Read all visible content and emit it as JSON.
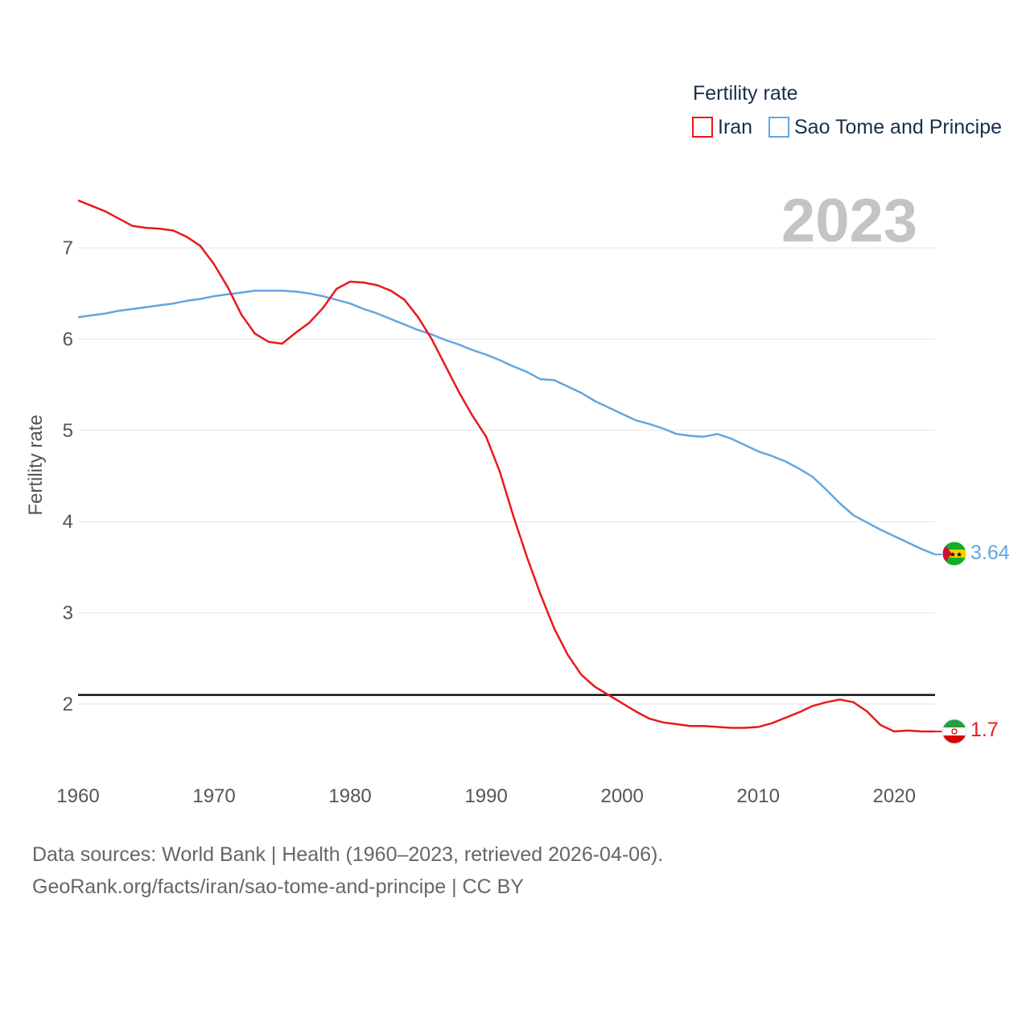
{
  "chart_data": {
    "type": "line",
    "title": "Fertility rate",
    "year_display": "2023",
    "ylabel": "Fertility rate",
    "xlabel": "",
    "xlim": [
      1960,
      2023
    ],
    "ylim": [
      1.3,
      7.55
    ],
    "x_ticks": [
      1960,
      1970,
      1980,
      1990,
      2000,
      2010,
      2020
    ],
    "y_ticks": [
      2,
      3,
      4,
      5,
      6,
      7
    ],
    "reference_line": 2.1,
    "x": [
      1960,
      1961,
      1962,
      1963,
      1964,
      1965,
      1966,
      1967,
      1968,
      1969,
      1970,
      1971,
      1972,
      1973,
      1974,
      1975,
      1976,
      1977,
      1978,
      1979,
      1980,
      1981,
      1982,
      1983,
      1984,
      1985,
      1986,
      1987,
      1988,
      1989,
      1990,
      1991,
      1992,
      1993,
      1994,
      1995,
      1996,
      1997,
      1998,
      1999,
      2000,
      2001,
      2002,
      2003,
      2004,
      2005,
      2006,
      2007,
      2008,
      2009,
      2010,
      2011,
      2012,
      2013,
      2014,
      2015,
      2016,
      2017,
      2018,
      2019,
      2020,
      2021,
      2022,
      2023
    ],
    "series": [
      {
        "name": "Iran",
        "color": "#e8191c",
        "end_label": "1.7",
        "values": [
          7.52,
          7.46,
          7.4,
          7.32,
          7.24,
          7.22,
          7.21,
          7.19,
          7.12,
          7.02,
          6.82,
          6.57,
          6.27,
          6.06,
          5.97,
          5.95,
          6.07,
          6.18,
          6.34,
          6.55,
          6.63,
          6.62,
          6.59,
          6.53,
          6.43,
          6.24,
          6.0,
          5.71,
          5.42,
          5.16,
          4.93,
          4.55,
          4.06,
          3.61,
          3.2,
          2.83,
          2.54,
          2.32,
          2.19,
          2.1,
          2.01,
          1.92,
          1.84,
          1.8,
          1.78,
          1.76,
          1.76,
          1.75,
          1.74,
          1.74,
          1.75,
          1.79,
          1.85,
          1.91,
          1.98,
          2.02,
          2.05,
          2.02,
          1.92,
          1.77,
          1.7,
          1.71,
          1.7,
          1.7
        ]
      },
      {
        "name": "Sao Tome and Principe",
        "color": "#62a6e3",
        "end_label": "3.64",
        "values": [
          6.24,
          6.26,
          6.28,
          6.31,
          6.33,
          6.35,
          6.37,
          6.39,
          6.42,
          6.44,
          6.47,
          6.49,
          6.51,
          6.53,
          6.53,
          6.53,
          6.52,
          6.5,
          6.47,
          6.43,
          6.39,
          6.33,
          6.28,
          6.22,
          6.16,
          6.1,
          6.05,
          5.99,
          5.94,
          5.88,
          5.83,
          5.77,
          5.7,
          5.64,
          5.56,
          5.55,
          5.48,
          5.41,
          5.32,
          5.25,
          5.18,
          5.11,
          5.07,
          5.02,
          4.96,
          4.94,
          4.93,
          4.96,
          4.91,
          4.84,
          4.77,
          4.72,
          4.66,
          4.58,
          4.49,
          4.35,
          4.2,
          4.07,
          3.99,
          3.91,
          3.84,
          3.77,
          3.7,
          3.64
        ]
      }
    ],
    "legend_position": "top-right"
  },
  "source": {
    "line1": "Data sources: World Bank | Health (1960–2023, retrieved 2026-04-06).",
    "line2": "GeoRank.org/facts/iran/sao-tome-and-principe | CC BY"
  },
  "icons": {
    "iran": "iran-flag-icon",
    "sao_tome": "sao-tome-and-principe-flag-icon"
  }
}
